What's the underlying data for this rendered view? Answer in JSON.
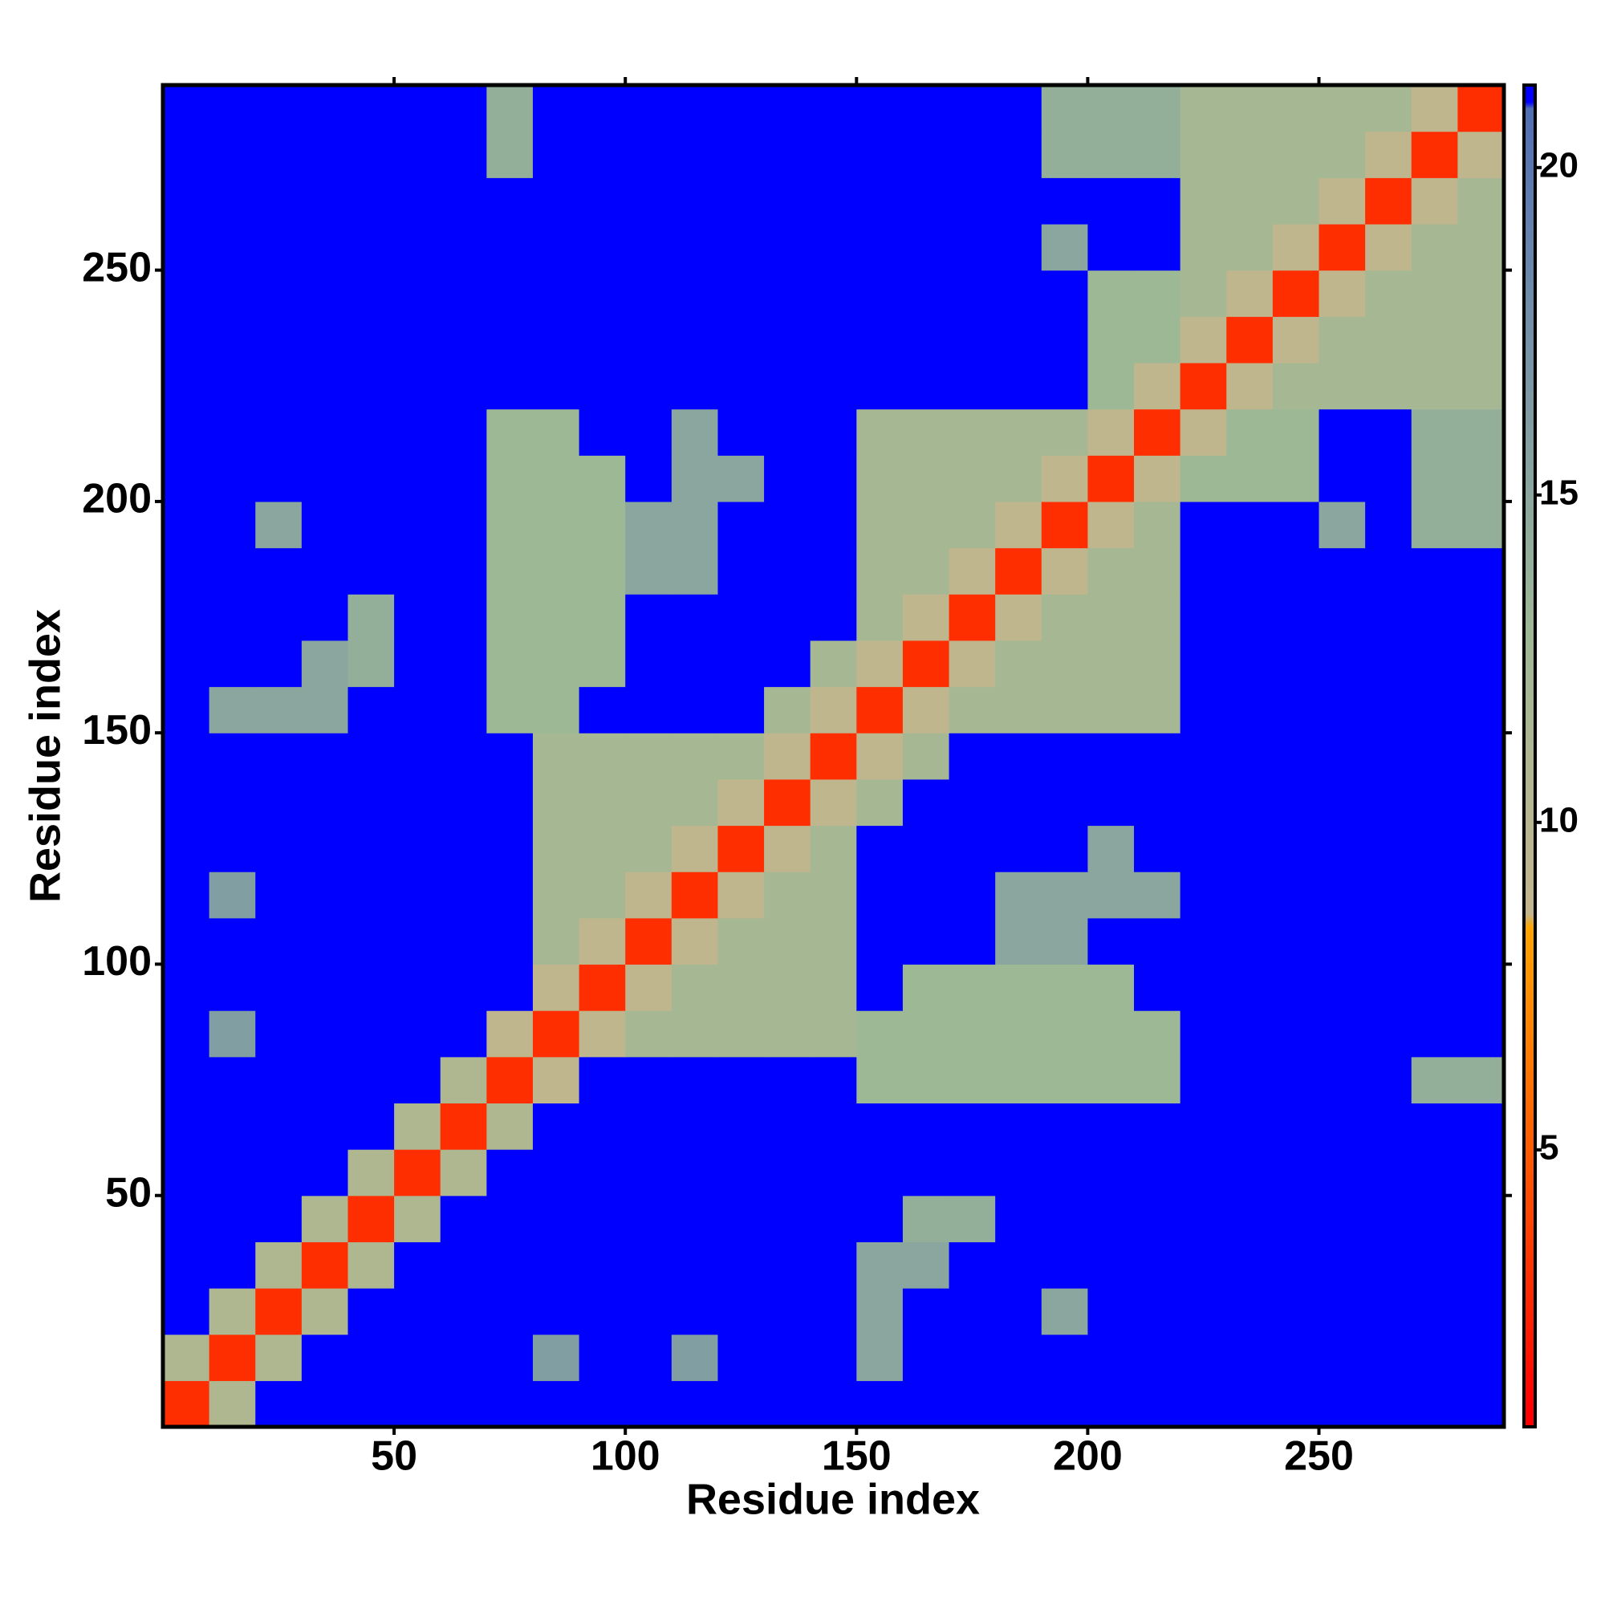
{
  "chart_data": {
    "type": "heatmap",
    "xlabel": "Residue index",
    "ylabel": "Residue index",
    "xlim": [
      0,
      290
    ],
    "ylim": [
      0,
      290
    ],
    "xticks": [
      50,
      100,
      150,
      200,
      250
    ],
    "yticks": [
      50,
      100,
      150,
      200,
      250
    ],
    "x": [
      5,
      15,
      25,
      35,
      45,
      55,
      65,
      75,
      85,
      95,
      105,
      115,
      125,
      135,
      145,
      155,
      165,
      175,
      185,
      195,
      205,
      215,
      225,
      235,
      245,
      255,
      265,
      275,
      285
    ],
    "y": [
      5,
      15,
      25,
      35,
      45,
      55,
      65,
      75,
      85,
      95,
      105,
      115,
      125,
      135,
      145,
      155,
      165,
      175,
      185,
      195,
      205,
      215,
      225,
      235,
      245,
      255,
      265,
      275,
      285
    ],
    "z": [
      [
        3,
        11,
        21,
        21,
        21,
        21,
        21,
        21,
        21,
        21,
        21,
        21,
        21,
        21,
        21,
        21,
        21,
        21,
        21,
        21,
        21,
        21,
        21,
        21,
        21,
        21,
        21,
        21,
        21
      ],
      [
        11,
        3,
        11,
        21,
        21,
        21,
        21,
        21,
        16,
        21,
        21,
        16,
        21,
        21,
        21,
        15,
        21,
        21,
        21,
        21,
        21,
        21,
        21,
        21,
        21,
        21,
        21,
        21,
        21
      ],
      [
        21,
        11,
        3,
        11,
        21,
        21,
        21,
        21,
        21,
        21,
        21,
        21,
        21,
        21,
        21,
        15,
        21,
        21,
        21,
        15,
        21,
        21,
        21,
        21,
        21,
        21,
        21,
        21,
        21
      ],
      [
        21,
        21,
        11,
        3,
        11,
        21,
        21,
        21,
        21,
        21,
        21,
        21,
        21,
        21,
        21,
        15,
        15,
        21,
        21,
        21,
        21,
        21,
        21,
        21,
        21,
        21,
        21,
        21,
        21
      ],
      [
        21,
        21,
        21,
        11,
        3,
        11,
        21,
        21,
        21,
        21,
        21,
        21,
        21,
        21,
        21,
        21,
        14,
        14,
        21,
        21,
        21,
        21,
        21,
        21,
        21,
        21,
        21,
        21,
        21
      ],
      [
        21,
        21,
        21,
        21,
        11,
        3,
        11,
        21,
        21,
        21,
        21,
        21,
        21,
        21,
        21,
        21,
        21,
        21,
        21,
        21,
        21,
        21,
        21,
        21,
        21,
        21,
        21,
        21,
        21
      ],
      [
        21,
        21,
        21,
        21,
        21,
        11,
        3,
        11,
        21,
        21,
        21,
        21,
        21,
        21,
        21,
        21,
        21,
        21,
        21,
        21,
        21,
        21,
        21,
        21,
        21,
        21,
        21,
        21,
        21
      ],
      [
        21,
        21,
        21,
        21,
        21,
        21,
        11,
        3,
        9,
        21,
        21,
        21,
        21,
        21,
        21,
        13,
        13,
        13,
        13,
        13,
        13,
        13,
        21,
        21,
        21,
        21,
        21,
        14,
        14
      ],
      [
        21,
        16,
        21,
        21,
        21,
        21,
        21,
        9,
        3,
        9,
        12,
        12,
        12,
        12,
        12,
        13,
        13,
        13,
        13,
        13,
        13,
        13,
        21,
        21,
        21,
        21,
        21,
        21,
        21
      ],
      [
        21,
        21,
        21,
        21,
        21,
        21,
        21,
        21,
        9,
        3,
        9,
        12,
        12,
        12,
        12,
        21,
        13,
        13,
        13,
        13,
        13,
        21,
        21,
        21,
        21,
        21,
        21,
        21,
        21
      ],
      [
        21,
        21,
        21,
        21,
        21,
        21,
        21,
        21,
        12,
        9,
        3,
        9,
        12,
        12,
        12,
        21,
        21,
        21,
        15,
        15,
        21,
        21,
        21,
        21,
        21,
        21,
        21,
        21,
        21
      ],
      [
        21,
        16,
        21,
        21,
        21,
        21,
        21,
        21,
        12,
        12,
        9,
        3,
        9,
        12,
        12,
        21,
        21,
        21,
        15,
        15,
        15,
        15,
        21,
        21,
        21,
        21,
        21,
        21,
        21
      ],
      [
        21,
        21,
        21,
        21,
        21,
        21,
        21,
        21,
        12,
        12,
        12,
        9,
        3,
        9,
        12,
        21,
        21,
        21,
        21,
        21,
        15,
        21,
        21,
        21,
        21,
        21,
        21,
        21,
        21
      ],
      [
        21,
        21,
        21,
        21,
        21,
        21,
        21,
        21,
        12,
        12,
        12,
        12,
        9,
        3,
        9,
        12,
        21,
        21,
        21,
        21,
        21,
        21,
        21,
        21,
        21,
        21,
        21,
        21,
        21
      ],
      [
        21,
        21,
        21,
        21,
        21,
        21,
        21,
        21,
        12,
        12,
        12,
        12,
        12,
        9,
        3,
        9,
        12,
        21,
        21,
        21,
        21,
        21,
        21,
        21,
        21,
        21,
        21,
        21,
        21
      ],
      [
        21,
        15,
        15,
        15,
        21,
        21,
        21,
        13,
        13,
        21,
        21,
        21,
        21,
        12,
        9,
        3,
        9,
        12,
        12,
        12,
        12,
        12,
        21,
        21,
        21,
        21,
        21,
        21,
        21
      ],
      [
        21,
        21,
        21,
        15,
        14,
        21,
        21,
        13,
        13,
        13,
        21,
        21,
        21,
        21,
        12,
        9,
        3,
        9,
        12,
        12,
        12,
        12,
        21,
        21,
        21,
        21,
        21,
        21,
        21
      ],
      [
        21,
        21,
        21,
        21,
        14,
        21,
        21,
        13,
        13,
        13,
        21,
        21,
        21,
        21,
        21,
        12,
        9,
        3,
        9,
        12,
        12,
        12,
        21,
        21,
        21,
        21,
        21,
        21,
        21
      ],
      [
        21,
        21,
        21,
        21,
        21,
        21,
        21,
        13,
        13,
        13,
        15,
        15,
        21,
        21,
        21,
        12,
        12,
        9,
        3,
        9,
        12,
        12,
        21,
        21,
        21,
        21,
        21,
        21,
        21
      ],
      [
        21,
        21,
        15,
        21,
        21,
        21,
        21,
        13,
        13,
        13,
        15,
        15,
        21,
        21,
        21,
        12,
        12,
        12,
        9,
        3,
        9,
        12,
        21,
        21,
        21,
        15,
        21,
        14,
        14
      ],
      [
        21,
        21,
        21,
        21,
        21,
        21,
        21,
        13,
        13,
        13,
        21,
        15,
        15,
        21,
        21,
        12,
        12,
        12,
        12,
        9,
        3,
        9,
        13,
        13,
        13,
        21,
        21,
        14,
        14
      ],
      [
        21,
        21,
        21,
        21,
        21,
        21,
        21,
        13,
        13,
        21,
        21,
        15,
        21,
        21,
        21,
        12,
        12,
        12,
        12,
        12,
        9,
        3,
        9,
        13,
        13,
        21,
        21,
        14,
        14
      ],
      [
        21,
        21,
        21,
        21,
        21,
        21,
        21,
        21,
        21,
        21,
        21,
        21,
        21,
        21,
        21,
        21,
        21,
        21,
        21,
        21,
        13,
        9,
        3,
        9,
        12,
        12,
        12,
        12,
        12
      ],
      [
        21,
        21,
        21,
        21,
        21,
        21,
        21,
        21,
        21,
        21,
        21,
        21,
        21,
        21,
        21,
        21,
        21,
        21,
        21,
        21,
        13,
        13,
        9,
        3,
        9,
        12,
        12,
        12,
        12
      ],
      [
        21,
        21,
        21,
        21,
        21,
        21,
        21,
        21,
        21,
        21,
        21,
        21,
        21,
        21,
        21,
        21,
        21,
        21,
        21,
        21,
        13,
        13,
        12,
        9,
        3,
        9,
        12,
        12,
        12
      ],
      [
        21,
        21,
        21,
        21,
        21,
        21,
        21,
        21,
        21,
        21,
        21,
        21,
        21,
        21,
        21,
        21,
        21,
        21,
        21,
        15,
        21,
        21,
        12,
        12,
        9,
        3,
        9,
        12,
        12
      ],
      [
        21,
        21,
        21,
        21,
        21,
        21,
        21,
        21,
        21,
        21,
        21,
        21,
        21,
        21,
        21,
        21,
        21,
        21,
        21,
        21,
        21,
        21,
        12,
        12,
        12,
        9,
        3,
        9,
        12
      ],
      [
        21,
        21,
        21,
        21,
        21,
        21,
        21,
        14,
        21,
        21,
        21,
        21,
        21,
        21,
        21,
        21,
        21,
        21,
        21,
        14,
        14,
        14,
        12,
        12,
        12,
        12,
        9,
        3,
        9
      ],
      [
        21,
        21,
        21,
        21,
        21,
        21,
        21,
        14,
        21,
        21,
        21,
        21,
        21,
        21,
        21,
        21,
        21,
        21,
        21,
        14,
        14,
        14,
        12,
        12,
        12,
        12,
        12,
        9,
        3
      ]
    ],
    "clim": [
      0.77,
      21.26
    ],
    "cticks": [
      5,
      10,
      15,
      20
    ],
    "colorscale": [
      [
        1,
        "#ff0000"
      ],
      [
        4,
        "#ff4500"
      ],
      [
        8.4,
        "#ffa500"
      ],
      [
        8.6,
        "#c4b68c"
      ],
      [
        13,
        "#9db895"
      ],
      [
        18,
        "#6f8cab"
      ],
      [
        20.9,
        "#4f6fb5"
      ],
      [
        21,
        "#0000ff"
      ]
    ]
  }
}
